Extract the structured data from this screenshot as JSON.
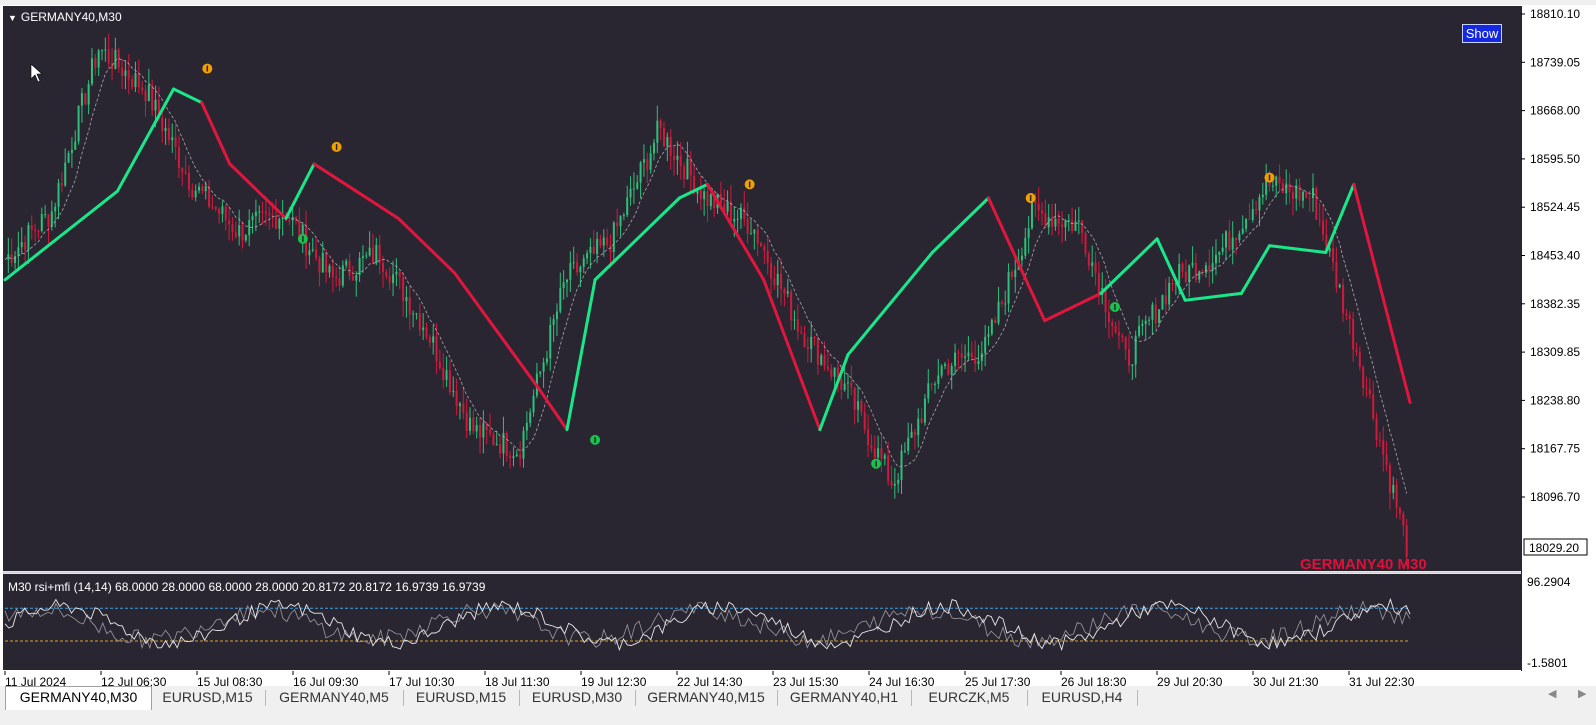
{
  "window": {
    "symbol_title": "GERMANY40,M30",
    "show_button": "Show",
    "watermark": "GERMANY40 M30"
  },
  "colors": {
    "background": "#2a2631",
    "bull": "#2ec07a",
    "bear": "#d01a3c",
    "trend_up": "#19e88a",
    "trend_down": "#e0163f",
    "arrow_up": "#19c24a",
    "arrow_down": "#f0a000"
  },
  "price_axis": {
    "labels": [
      "18810.10",
      "18739.05",
      "18668.00",
      "18595.50",
      "18524.45",
      "18453.40",
      "18382.35",
      "18309.85",
      "18238.80",
      "18167.75",
      "18096.70"
    ],
    "current_price": "18029.20"
  },
  "indicator": {
    "title": "M30 rsi+mfi (14,14) 68.0000 28.0000 68.0000 28.0000 20.8172 20.8172 16.9739 16.9739",
    "axis_top": "96.2904",
    "axis_bottom": "-1.5801",
    "upper_level": 68,
    "lower_level": 28
  },
  "time_axis": [
    "11 Jul 2024",
    "12 Jul 06:30",
    "15 Jul 08:30",
    "16 Jul 09:30",
    "17 Jul 10:30",
    "18 Jul 11:30",
    "19 Jul 12:30",
    "22 Jul 14:30",
    "23 Jul 15:30",
    "24 Jul 16:30",
    "25 Jul 17:30",
    "26 Jul 18:30",
    "29 Jul 20:30",
    "30 Jul 21:30",
    "31 Jul 22:30"
  ],
  "tabs": [
    {
      "label": "GERMANY40,M30",
      "active": true
    },
    {
      "label": "EURUSD,M15",
      "active": false
    },
    {
      "label": "GERMANY40,M5",
      "active": false
    },
    {
      "label": "EURUSD,M15",
      "active": false
    },
    {
      "label": "EURUSD,M30",
      "active": false
    },
    {
      "label": "GERMANY40,M15",
      "active": false
    },
    {
      "label": "GERMANY40,H1",
      "active": false
    },
    {
      "label": "EURCZK,M5",
      "active": false
    },
    {
      "label": "EURUSD,H4",
      "active": false
    }
  ],
  "chart_data": {
    "type": "line",
    "x": [
      "11 Jul 2024",
      "12 Jul 06:30",
      "15 Jul 08:30",
      "16 Jul 09:30",
      "17 Jul 10:30",
      "18 Jul 11:30",
      "19 Jul 12:30",
      "22 Jul 14:30",
      "23 Jul 15:30",
      "24 Jul 16:30",
      "25 Jul 17:30",
      "26 Jul 18:30",
      "29 Jul 20:30",
      "30 Jul 21:30",
      "31 Jul 22:30"
    ],
    "price_path": [
      18450,
      18520,
      18760,
      18700,
      18560,
      18490,
      18520,
      18420,
      18460,
      18350,
      18200,
      18170,
      18420,
      18480,
      18640,
      18540,
      18500,
      18350,
      18260,
      18120,
      18290,
      18320,
      18520,
      18500,
      18300,
      18420,
      18460,
      18560,
      18540,
      18300,
      18030
    ],
    "trend_line": [
      {
        "x": 0,
        "v": 18420,
        "dir": "up"
      },
      {
        "x": 4,
        "v": 18550,
        "dir": "up"
      },
      {
        "x": 6,
        "v": 18700,
        "dir": "up"
      },
      {
        "x": 7,
        "v": 18680,
        "dir": "down"
      },
      {
        "x": 8,
        "v": 18590,
        "dir": "down"
      },
      {
        "x": 10,
        "v": 18510,
        "dir": "up"
      },
      {
        "x": 11,
        "v": 18590,
        "dir": "down"
      },
      {
        "x": 14,
        "v": 18510,
        "dir": "down"
      },
      {
        "x": 16,
        "v": 18430,
        "dir": "down"
      },
      {
        "x": 19,
        "v": 18260,
        "dir": "down"
      },
      {
        "x": 20,
        "v": 18200,
        "dir": "up"
      },
      {
        "x": 21,
        "v": 18420,
        "dir": "up"
      },
      {
        "x": 24,
        "v": 18540,
        "dir": "up"
      },
      {
        "x": 25,
        "v": 18560,
        "dir": "down"
      },
      {
        "x": 27,
        "v": 18420,
        "dir": "down"
      },
      {
        "x": 29,
        "v": 18200,
        "dir": "up"
      },
      {
        "x": 30,
        "v": 18310,
        "dir": "up"
      },
      {
        "x": 33,
        "v": 18460,
        "dir": "up"
      },
      {
        "x": 35,
        "v": 18540,
        "dir": "down"
      },
      {
        "x": 37,
        "v": 18360,
        "dir": "down"
      },
      {
        "x": 39,
        "v": 18400,
        "dir": "up"
      },
      {
        "x": 41,
        "v": 18480,
        "dir": "up"
      },
      {
        "x": 42,
        "v": 18390,
        "dir": "up"
      },
      {
        "x": 44,
        "v": 18400,
        "dir": "up"
      },
      {
        "x": 45,
        "v": 18470,
        "dir": "up"
      },
      {
        "x": 47,
        "v": 18460,
        "dir": "up"
      },
      {
        "x": 48,
        "v": 18560,
        "dir": "down"
      },
      {
        "x": 50,
        "v": 18240,
        "dir": "down"
      }
    ],
    "signals": [
      {
        "x": 7.2,
        "v": 18730,
        "dir": "down"
      },
      {
        "x": 11.8,
        "v": 18615,
        "dir": "down"
      },
      {
        "x": 10.6,
        "v": 18480,
        "dir": "up"
      },
      {
        "x": 21.0,
        "v": 18185,
        "dir": "up"
      },
      {
        "x": 26.5,
        "v": 18560,
        "dir": "down"
      },
      {
        "x": 31.0,
        "v": 18150,
        "dir": "up"
      },
      {
        "x": 36.5,
        "v": 18540,
        "dir": "down"
      },
      {
        "x": 39.5,
        "v": 18380,
        "dir": "up"
      },
      {
        "x": 45.0,
        "v": 18570,
        "dir": "down"
      }
    ],
    "ylim": [
      18029.2,
      18810.1
    ]
  }
}
